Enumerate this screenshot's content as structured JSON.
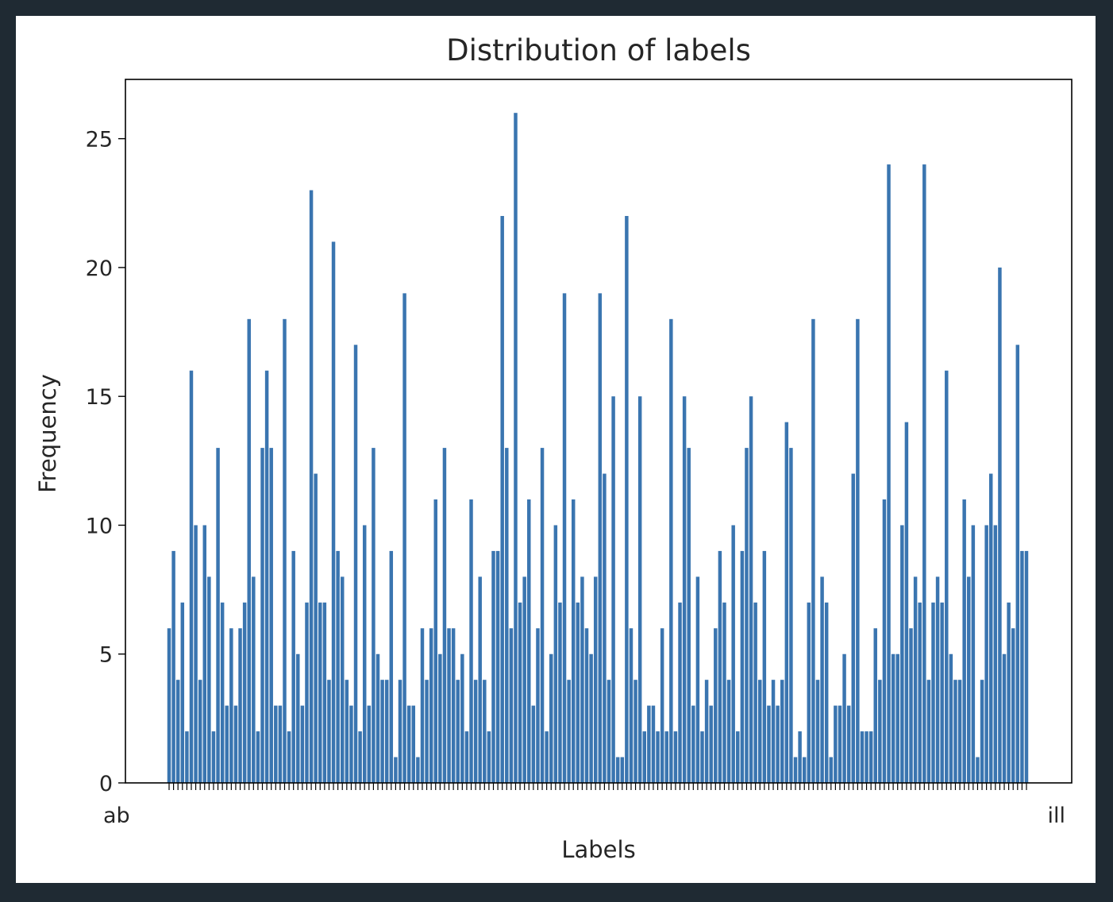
{
  "chart_data": {
    "type": "bar",
    "title": "Distribution of labels",
    "xlabel": "Labels",
    "ylabel": "Frequency",
    "ylim": [
      0,
      27.3
    ],
    "yticks": [
      0,
      5,
      10,
      15,
      20,
      25
    ],
    "grid": false,
    "bar_color": "#3a75b0",
    "categories": {
      "first_visible_label": "ab",
      "last_visible_label": "ill",
      "note": "tick labels overlap and are illegible"
    },
    "values": [
      6,
      9,
      4,
      7,
      2,
      16,
      10,
      4,
      10,
      8,
      2,
      13,
      7,
      3,
      6,
      3,
      6,
      7,
      18,
      8,
      2,
      13,
      16,
      13,
      3,
      3,
      18,
      2,
      9,
      5,
      3,
      7,
      23,
      12,
      7,
      7,
      4,
      21,
      9,
      8,
      4,
      3,
      17,
      2,
      10,
      3,
      13,
      5,
      4,
      4,
      9,
      1,
      4,
      19,
      3,
      3,
      1,
      6,
      4,
      6,
      11,
      5,
      13,
      6,
      6,
      4,
      5,
      2,
      11,
      4,
      8,
      4,
      2,
      9,
      9,
      22,
      13,
      6,
      26,
      7,
      8,
      11,
      3,
      6,
      13,
      2,
      5,
      10,
      7,
      19,
      4,
      11,
      7,
      8,
      6,
      5,
      8,
      19,
      12,
      4,
      15,
      1,
      1,
      22,
      6,
      4,
      15,
      2,
      3,
      3,
      2,
      6,
      2,
      18,
      2,
      7,
      15,
      13,
      3,
      8,
      2,
      4,
      3,
      6,
      9,
      7,
      4,
      10,
      2,
      9,
      13,
      15,
      7,
      4,
      9,
      3,
      4,
      3,
      4,
      14,
      13,
      1,
      2,
      1,
      7,
      18,
      4,
      8,
      7,
      1,
      3,
      3,
      5,
      3,
      12,
      18,
      2,
      2,
      2,
      6,
      4,
      11,
      24,
      5,
      5,
      10,
      14,
      6,
      8,
      7,
      24,
      4,
      7,
      8,
      7,
      16,
      5,
      4,
      4,
      11,
      8,
      10,
      1,
      4,
      10,
      12,
      10,
      20,
      5,
      7,
      6,
      17,
      9,
      9
    ]
  }
}
